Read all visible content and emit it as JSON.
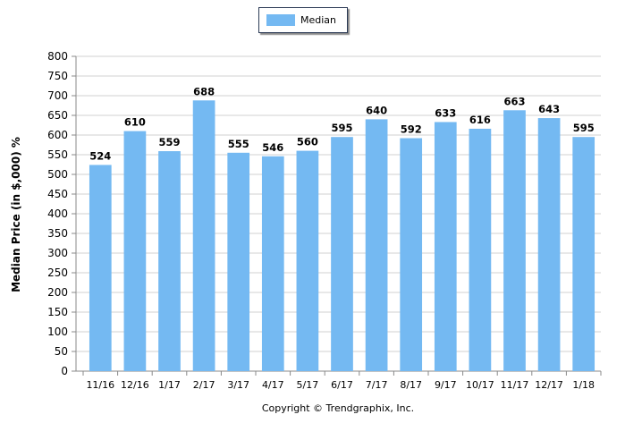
{
  "chart_data": {
    "type": "bar",
    "categories": [
      "11/16",
      "12/16",
      "1/17",
      "2/17",
      "3/17",
      "4/17",
      "5/17",
      "6/17",
      "7/17",
      "8/17",
      "9/17",
      "10/17",
      "11/17",
      "12/17",
      "1/18"
    ],
    "series": [
      {
        "name": "Median",
        "values": [
          524,
          610,
          559,
          688,
          555,
          546,
          560,
          595,
          640,
          592,
          633,
          616,
          663,
          643,
          595
        ]
      }
    ],
    "ylabel": "Median Price (in $,000) %",
    "ylim": [
      0,
      800
    ],
    "yticks": [
      0,
      50,
      100,
      150,
      200,
      250,
      300,
      350,
      400,
      450,
      500,
      550,
      600,
      650,
      700,
      750,
      800
    ],
    "grid": true,
    "legend": "top-center",
    "bar_color": "#74b9f2"
  },
  "legend": {
    "label": "Median"
  },
  "footer": {
    "copyright": "Copyright © Trendgraphix, Inc."
  }
}
